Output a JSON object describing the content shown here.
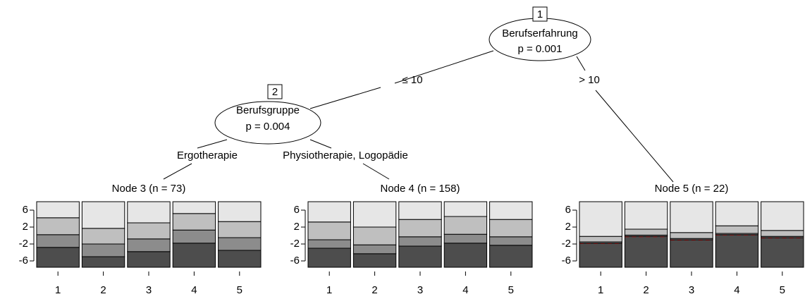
{
  "nodes": [
    {
      "id": "1",
      "label": "Berufserfahrung",
      "p": "p = 0.001"
    },
    {
      "id": "2",
      "label": "Berufsgruppe",
      "p": "p = 0.004"
    }
  ],
  "edges": [
    {
      "label": "≤ 10"
    },
    {
      "label": "> 10"
    },
    {
      "label": "Ergotherapie"
    },
    {
      "label": "Physiotherapie, Logopädie"
    }
  ],
  "ylim": [
    -7.5,
    8
  ],
  "yticks": [
    6,
    2,
    -2,
    -6
  ],
  "colors": [
    "#4d4d4d",
    "#8c8c8c",
    "#bfbfbf",
    "#e6e6e6"
  ],
  "leaves": [
    {
      "title": "Node 3 (n = 73)",
      "categories": [
        1,
        2,
        3,
        4,
        5
      ],
      "reference_line": false,
      "segments": [
        [
          4.7,
          3.0,
          4.0,
          3.8
        ],
        [
          2.5,
          3.0,
          3.7,
          6.3
        ],
        [
          3.7,
          3.0,
          3.8,
          5.0
        ],
        [
          5.7,
          3.1,
          3.9,
          2.8
        ],
        [
          4.0,
          3.0,
          3.8,
          4.7
        ]
      ]
    },
    {
      "title": "Node 4 (n = 158)",
      "categories": [
        1,
        2,
        3,
        4,
        5
      ],
      "reference_line": false,
      "segments": [
        [
          4.5,
          2.0,
          4.2,
          4.8
        ],
        [
          3.2,
          2.1,
          4.2,
          6.0
        ],
        [
          5.0,
          2.2,
          4.1,
          4.2
        ],
        [
          5.7,
          2.1,
          4.2,
          3.5
        ],
        [
          5.2,
          2.0,
          4.1,
          4.2
        ]
      ]
    },
    {
      "title": "Node 5 (n = 22)",
      "categories": [
        1,
        2,
        3,
        4,
        5
      ],
      "reference_line": true,
      "segments": [
        [
          5.7,
          0.3,
          1.3,
          8.2
        ],
        [
          7.3,
          0.3,
          1.4,
          6.5
        ],
        [
          6.5,
          0.3,
          1.4,
          7.3
        ],
        [
          7.7,
          0.3,
          1.8,
          5.7
        ],
        [
          7.0,
          0.3,
          1.4,
          6.8
        ]
      ]
    }
  ]
}
